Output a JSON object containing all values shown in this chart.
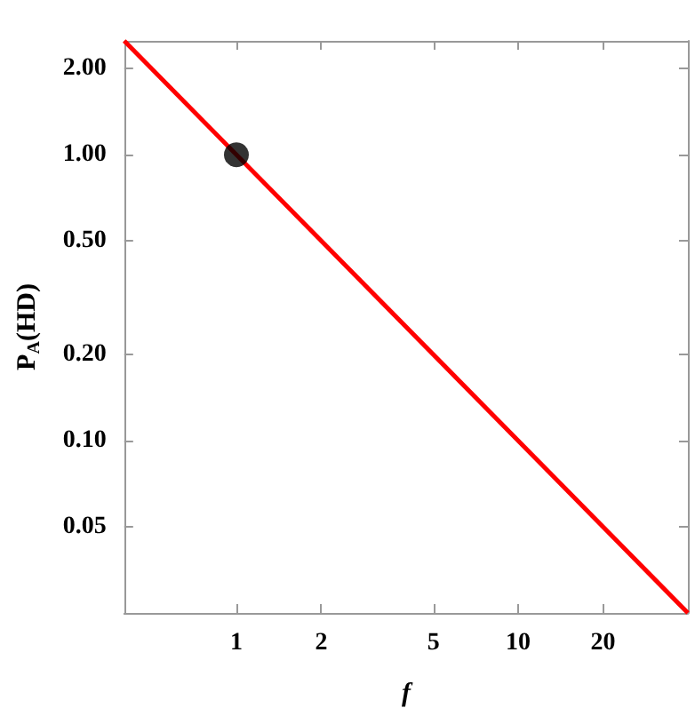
{
  "chart_data": {
    "type": "line",
    "xlabel": "f",
    "ylabel": "P$_{A}$(HD)",
    "log": "xy",
    "grid": false,
    "xlim": [
      0.4,
      40
    ],
    "ylim": [
      0.025,
      2.5
    ],
    "xticks": [
      1,
      2,
      5,
      10,
      20
    ],
    "yticks": [
      {
        "value": 0.05,
        "label": "0.05"
      },
      {
        "value": 0.1,
        "label": "0.10"
      },
      {
        "value": 0.2,
        "label": "0.20"
      },
      {
        "value": 0.5,
        "label": "0.50"
      },
      {
        "value": 1,
        "label": "1.00"
      },
      {
        "value": 2,
        "label": "2.00"
      }
    ],
    "series": [
      {
        "color": "#ff0000",
        "x": [
          0.4,
          40
        ],
        "values": [
          2.5,
          0.025
        ],
        "marker": "none",
        "line_style": "solid"
      },
      {
        "type": "scatter",
        "color": "#000000",
        "x": [
          1
        ],
        "values": [
          1
        ],
        "marker": "circle"
      }
    ]
  }
}
